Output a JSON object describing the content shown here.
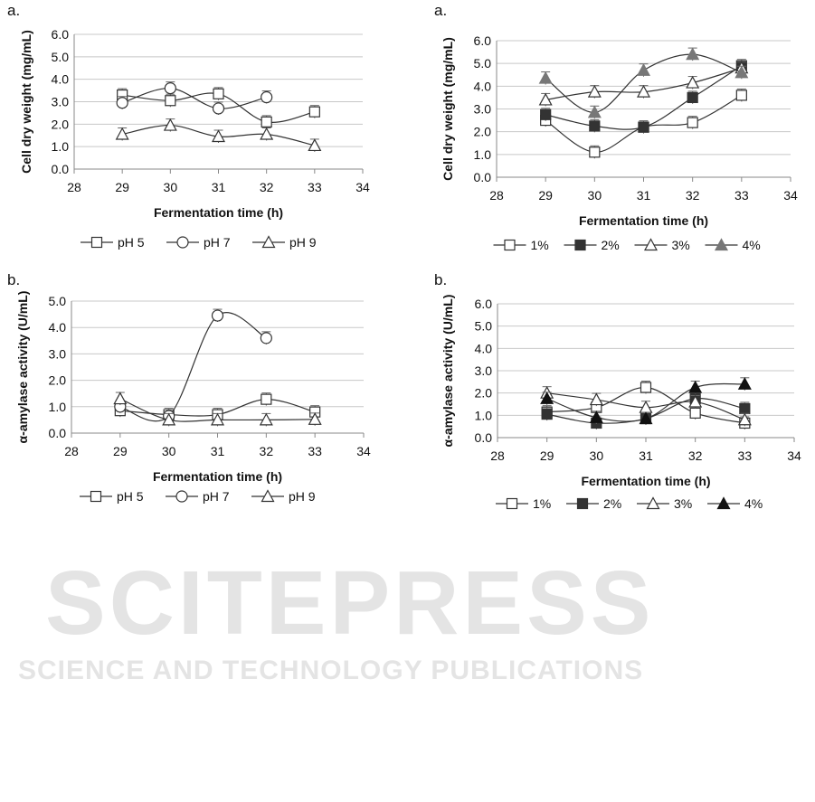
{
  "watermark": {
    "line1": "SCITEPRESS",
    "line2": "SCIENCE AND TECHNOLOGY PUBLICATIONS"
  },
  "chart_data": [
    {
      "type": "line",
      "panel": "a.",
      "xlabel": "Fermentation time (h)",
      "ylabel": "Cell dry weight (mg/mL)",
      "xlim": [
        28,
        34
      ],
      "ylim": [
        0,
        6
      ],
      "xticks": [
        "28",
        "29",
        "30",
        "31",
        "32",
        "33",
        "34"
      ],
      "yticks": [
        "0.0",
        "1.0",
        "2.0",
        "3.0",
        "4.0",
        "5.0",
        "6.0"
      ],
      "grid": true,
      "legend": "bottom",
      "x": [
        29,
        30,
        31,
        32,
        33
      ],
      "series": [
        {
          "name": "pH 5",
          "marker": "square-open",
          "color": "#333333",
          "values": [
            3.3,
            3.05,
            3.35,
            2.1,
            2.55
          ]
        },
        {
          "name": "pH 7",
          "marker": "circle-open",
          "color": "#333333",
          "values": [
            2.95,
            3.6,
            2.7,
            3.2,
            null
          ]
        },
        {
          "name": "pH 9",
          "marker": "triangle-open",
          "color": "#333333",
          "values": [
            1.55,
            1.95,
            1.45,
            1.55,
            1.05
          ]
        }
      ]
    },
    {
      "type": "line",
      "panel": "a.",
      "xlabel": "Fermentation time (h)",
      "ylabel": "Cell dry weight (mg/mL)",
      "xlim": [
        28,
        34
      ],
      "ylim": [
        0,
        6
      ],
      "xticks": [
        "28",
        "29",
        "30",
        "31",
        "32",
        "33",
        "34"
      ],
      "yticks": [
        "0.0",
        "1.0",
        "2.0",
        "3.0",
        "4.0",
        "5.0",
        "6.0"
      ],
      "grid": true,
      "legend": "bottom",
      "x": [
        29,
        30,
        31,
        32,
        33
      ],
      "series": [
        {
          "name": "1%",
          "marker": "square-open",
          "color": "#333333",
          "values": [
            2.5,
            1.1,
            2.2,
            2.4,
            3.6
          ]
        },
        {
          "name": "2%",
          "marker": "square-filled",
          "color": "#333333",
          "values": [
            2.75,
            2.25,
            2.2,
            3.5,
            4.9
          ]
        },
        {
          "name": "3%",
          "marker": "triangle-open",
          "color": "#333333",
          "values": [
            3.4,
            3.75,
            3.75,
            4.15,
            4.8
          ]
        },
        {
          "name": "4%",
          "marker": "triangle-filled",
          "color": "#777777",
          "values": [
            4.35,
            2.85,
            4.7,
            5.4,
            4.6
          ]
        }
      ]
    },
    {
      "type": "line",
      "panel": "b.",
      "xlabel": "Fermentation time (h)",
      "ylabel": "α-amylase activity (U/mL)",
      "xlim": [
        28,
        34
      ],
      "ylim": [
        0,
        5
      ],
      "xticks": [
        "28",
        "29",
        "30",
        "31",
        "32",
        "33",
        "34"
      ],
      "yticks": [
        "0.0",
        "1.0",
        "2.0",
        "3.0",
        "4.0",
        "5.0"
      ],
      "grid": true,
      "legend": "bottom",
      "x": [
        29,
        30,
        31,
        32,
        33
      ],
      "series": [
        {
          "name": "pH 5",
          "marker": "square-open",
          "color": "#333333",
          "values": [
            0.85,
            0.7,
            0.7,
            1.28,
            0.8
          ]
        },
        {
          "name": "pH 7",
          "marker": "circle-open",
          "color": "#333333",
          "values": [
            1.0,
            0.65,
            4.45,
            3.6,
            null
          ]
        },
        {
          "name": "pH 9",
          "marker": "triangle-open",
          "color": "#333333",
          "values": [
            1.3,
            0.5,
            0.5,
            0.5,
            0.52
          ]
        }
      ]
    },
    {
      "type": "line",
      "panel": "b.",
      "xlabel": "Fermentation time (h)",
      "ylabel": "α-amylase activity (U/mL)",
      "xlim": [
        28,
        34
      ],
      "ylim": [
        0,
        6
      ],
      "xticks": [
        "28",
        "29",
        "30",
        "31",
        "32",
        "33",
        "34"
      ],
      "yticks": [
        "0.0",
        "1.0",
        "2.0",
        "3.0",
        "4.0",
        "5.0",
        "6.0"
      ],
      "grid": true,
      "legend": "bottom",
      "x": [
        29,
        30,
        31,
        32,
        33
      ],
      "series": [
        {
          "name": "1%",
          "marker": "square-open",
          "color": "#333333",
          "values": [
            1.15,
            1.35,
            2.25,
            1.1,
            0.65
          ]
        },
        {
          "name": "2%",
          "marker": "square-filled",
          "color": "#333333",
          "values": [
            1.05,
            0.65,
            0.85,
            1.75,
            1.3
          ]
        },
        {
          "name": "3%",
          "marker": "triangle-open",
          "color": "#333333",
          "values": [
            2.0,
            1.7,
            1.35,
            1.6,
            0.8
          ]
        },
        {
          "name": "4%",
          "marker": "triangle-filled",
          "color": "#111111",
          "values": [
            1.75,
            0.9,
            0.85,
            2.25,
            2.4
          ]
        }
      ]
    }
  ]
}
